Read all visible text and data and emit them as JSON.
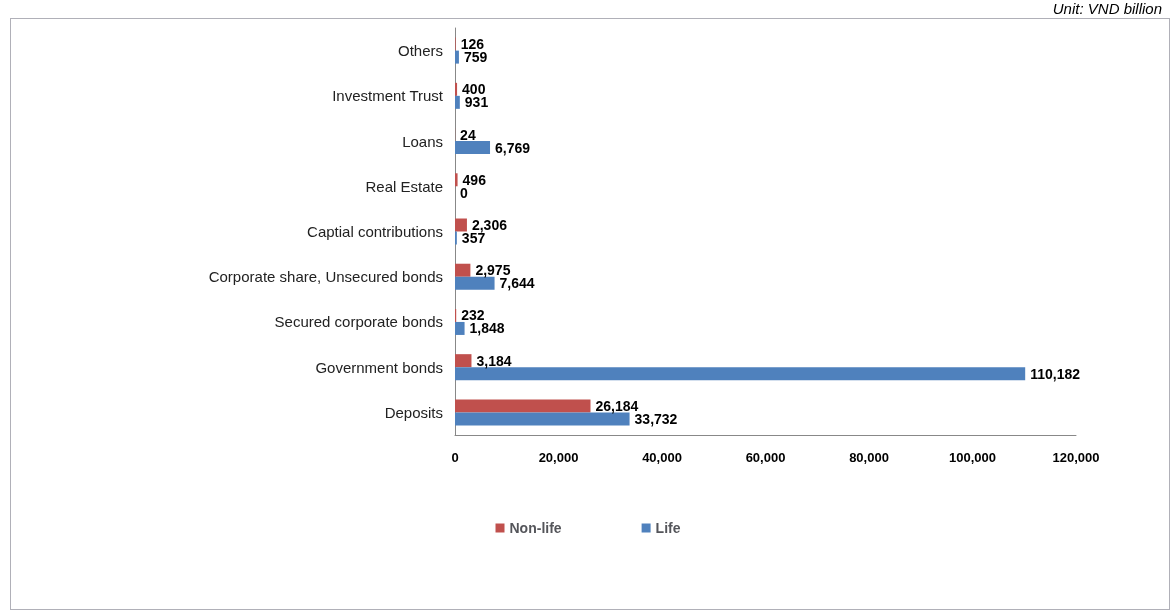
{
  "chart_data": {
    "type": "bar",
    "orientation": "horizontal",
    "annotations": [
      "Unit: VND billion"
    ],
    "categories": [
      "Others",
      "Investment Trust",
      "Loans",
      "Real Estate",
      "Captial contributions",
      "Corporate share, Unsecured bonds",
      "Secured corporate bonds",
      "Government bonds",
      "Deposits"
    ],
    "series": [
      {
        "name": "Non-life",
        "color": "#c0504d",
        "values": [
          126,
          400,
          24,
          496,
          2306,
          2975,
          232,
          3184,
          26184
        ],
        "value_labels": [
          "126",
          "400",
          "24",
          "496",
          "2,306",
          "2,975",
          "232",
          "3,184",
          "26,184"
        ]
      },
      {
        "name": "Life",
        "color": "#4f81bd",
        "values": [
          759,
          931,
          6769,
          0,
          357,
          7644,
          1848,
          110182,
          33732
        ],
        "value_labels": [
          "759",
          "931",
          "6,769",
          "0",
          "357",
          "7,644",
          "1,848",
          "110,182",
          "33,732"
        ]
      }
    ],
    "xlim": [
      0,
      120000
    ],
    "xticks": [
      {
        "value": 0,
        "label": "0"
      },
      {
        "value": 20000,
        "label": "20,000"
      },
      {
        "value": 40000,
        "label": "40,000"
      },
      {
        "value": 60000,
        "label": "60,000"
      },
      {
        "value": 80000,
        "label": "80,000"
      },
      {
        "value": 100000,
        "label": "100,000"
      },
      {
        "value": 120000,
        "label": "120,000"
      }
    ],
    "grid": false,
    "legend": "bottom"
  }
}
